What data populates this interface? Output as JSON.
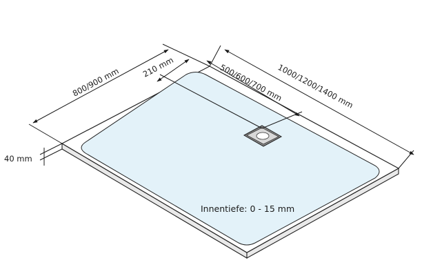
{
  "dimensions": {
    "width_label": "800/900 mm",
    "drain_offset_label": "210 mm",
    "drain_position_label": "500/600/700 mm",
    "length_label": "1000/1200/1400 mm",
    "height_label": "40 mm"
  },
  "note": {
    "depth_label": "Innentiefe: 0 - 15 mm"
  },
  "colors": {
    "tray_surface": "#ffffff",
    "basin_fill": "#e3f2f9",
    "line": "#1a1a1a"
  }
}
